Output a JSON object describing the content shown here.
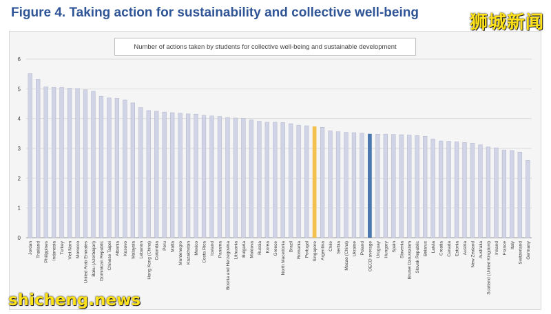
{
  "figure_title": "Figure 4. Taking action for sustainability and collective well-being",
  "watermark_cn": "狮城新闻",
  "watermark_en": "shicheng.news",
  "colors": {
    "default_bar": "#d0d4e6",
    "highlight_bar": "#f2c14e",
    "oecd_bar": "#4a78b0",
    "title": "#2f5597",
    "watermark": "#ffe21a"
  },
  "chart_data": {
    "type": "bar",
    "title": "Number of actions taken by students for collective well-being and sustainable development",
    "xlabel": "",
    "ylabel": "",
    "ylim": [
      0,
      6
    ],
    "yticks": [
      0,
      1,
      2,
      3,
      4,
      5,
      6
    ],
    "grid": true,
    "categories": [
      "Jordan",
      "Thailand",
      "Philippines",
      "Indonesia",
      "Turkey",
      "Viet Nam",
      "Morocco",
      "United Arab Emirates",
      "Baku (Azerbaijan)",
      "Dominican Republic",
      "Chinese Taipei",
      "Albania",
      "Kosovo",
      "Malaysia",
      "Lebanon",
      "Hong Kong (China)",
      "Colombia",
      "Peru",
      "Malta",
      "Montenegro",
      "Kazakhstan",
      "Mexico",
      "Costa Rica",
      "Iceland",
      "Panama",
      "Bosnia and Herzegovina",
      "Lithuania",
      "Bulgaria",
      "Moldova",
      "Russia",
      "Korea",
      "Greece",
      "North Macedonia",
      "Brazil",
      "Romania",
      "Portugal",
      "Singapore",
      "Argentina",
      "Chile",
      "Serbia",
      "Macao (China)",
      "Ukraine",
      "Poland",
      "OECD average",
      "Uruguay",
      "Hungary",
      "Spain",
      "Slovenia",
      "Brunei Darussalam",
      "Slovak Republic",
      "Belarus",
      "Latvia",
      "Croatia",
      "Canada",
      "Estonia",
      "Austria",
      "New Zealand",
      "Australia",
      "Scotland (United Kingdom)",
      "Ireland",
      "France",
      "Italy",
      "Switzerland",
      "Germany"
    ],
    "values": [
      5.52,
      5.32,
      5.07,
      5.05,
      5.05,
      5.02,
      5.01,
      4.97,
      4.92,
      4.75,
      4.7,
      4.68,
      4.63,
      4.53,
      4.37,
      4.27,
      4.25,
      4.22,
      4.2,
      4.18,
      4.16,
      4.15,
      4.11,
      4.09,
      4.07,
      4.04,
      4.02,
      4.01,
      3.96,
      3.91,
      3.88,
      3.88,
      3.87,
      3.83,
      3.78,
      3.76,
      3.74,
      3.71,
      3.59,
      3.56,
      3.54,
      3.53,
      3.51,
      3.49,
      3.48,
      3.48,
      3.47,
      3.46,
      3.45,
      3.43,
      3.41,
      3.32,
      3.25,
      3.24,
      3.22,
      3.2,
      3.18,
      3.12,
      3.05,
      3.02,
      2.95,
      2.93,
      2.88,
      2.6
    ],
    "highlight": {
      "Singapore": "highlight",
      "OECD average": "oecd"
    }
  }
}
